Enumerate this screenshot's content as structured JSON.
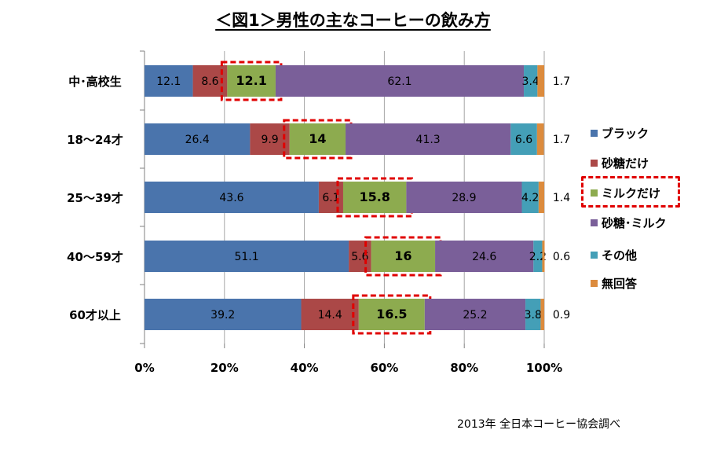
{
  "title": "＜図1＞男性の主なコーヒーの飲み方",
  "source_note": "2013年 全日本コーヒー協会調べ",
  "chart_data": {
    "type": "bar",
    "orientation": "horizontal",
    "stacked": "percent",
    "categories": [
      "中･高校生",
      "18～24才",
      "25～39才",
      "40～59才",
      "60才以上"
    ],
    "series": [
      {
        "name": "ブラック",
        "values": [
          12.1,
          26.4,
          43.6,
          51.1,
          39.2
        ],
        "color": "#4a74ac"
      },
      {
        "name": "砂糖だけ",
        "values": [
          8.6,
          9.9,
          6.1,
          5.6,
          14.4
        ],
        "color": "#ab4847"
      },
      {
        "name": "ミルクだけ",
        "values": [
          12.1,
          14,
          15.8,
          16,
          16.5
        ],
        "color": "#8dab4f",
        "highlighted": true
      },
      {
        "name": "砂糖･ミルク",
        "values": [
          62.1,
          41.3,
          28.9,
          24.6,
          25.2
        ],
        "color": "#7a5f99"
      },
      {
        "name": "その他",
        "values": [
          3.4,
          6.6,
          4.2,
          2.2,
          3.8
        ],
        "color": "#449fb7"
      },
      {
        "name": "無回答",
        "values": [
          1.7,
          1.7,
          1.4,
          0.6,
          0.9
        ],
        "color": "#dc8b3d"
      }
    ],
    "x_tick_labels": [
      "0%",
      "20%",
      "40%",
      "60%",
      "80%",
      "100%"
    ],
    "xlim": [
      0,
      100
    ],
    "grid": true,
    "legend_position": "right",
    "highlight_color": "#e00000"
  }
}
